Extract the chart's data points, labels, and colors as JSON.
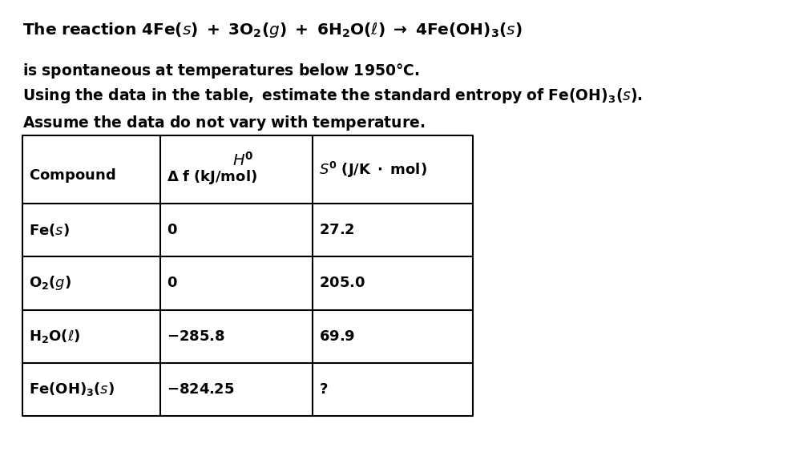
{
  "bg_color": "#ffffff",
  "text_color": "#000000",
  "title_fs": 14.5,
  "body_fs": 13.5,
  "table_fs": 13.0,
  "table": {
    "rows": [
      [
        "Fe(s)",
        "0",
        "27.2"
      ],
      [
        "O₂(g)",
        "0",
        "205.0"
      ],
      [
        "H₂O(ℓ)",
        "−285.8",
        "69.9"
      ],
      [
        "Fe(OH)₃(s)",
        "−824.25",
        "?"
      ]
    ]
  }
}
